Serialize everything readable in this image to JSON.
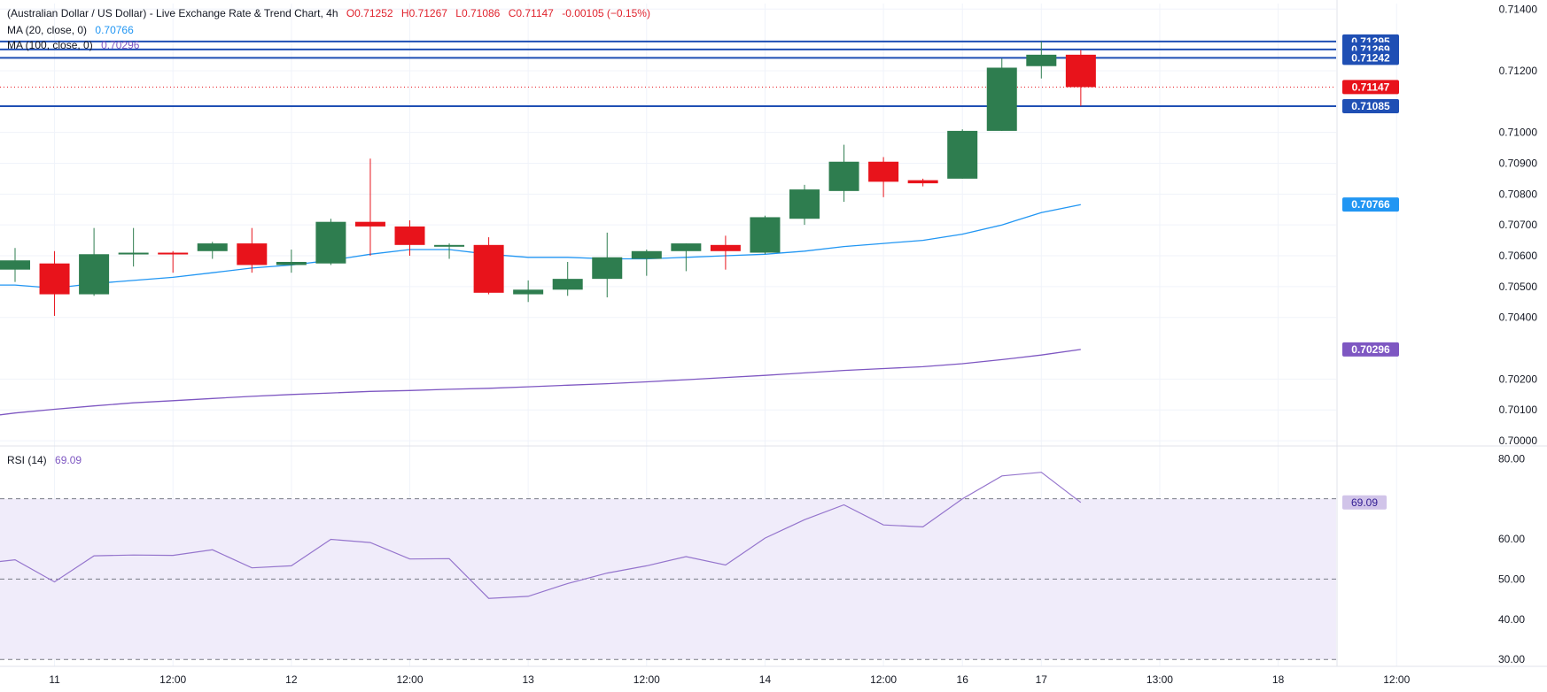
{
  "header": {
    "title": "(Australian Dollar / US Dollar) - Live Exchange Rate & Trend Chart, 4h",
    "open": "O0.71252",
    "high": "H0.71267",
    "low": "L0.71086",
    "close": "C0.71147",
    "change": "-0.00105 (−0.15%)",
    "ma20_label": "MA (20, close, 0)",
    "ma20_value": "0.70766",
    "ma100_label": "MA (100, close, 0)",
    "ma100_value": "0.70296",
    "rsi_label": "RSI (14)",
    "rsi_value": "69.09"
  },
  "colors": {
    "bull": "#2e7d4f",
    "bear": "#e8131b",
    "ma20": "#2196f3",
    "ma100": "#7e57c2",
    "rsi": "#9575cd",
    "hline": "#1f4fb4",
    "rsi_band": "#f0ecfa",
    "text": "#131722",
    "grid": "#f0f3fa"
  },
  "chart_data": [
    {
      "type": "candlestick",
      "title": "(Australian Dollar / US Dollar) - Live Exchange Rate & Trend Chart, 4h",
      "xlabel": "",
      "ylabel": "",
      "ylim": [
        0.6996,
        0.71418
      ],
      "y_ticks": [
        "0.71400",
        "0.71200",
        "0.71000",
        "0.70900",
        "0.70800",
        "0.70700",
        "0.70600",
        "0.70500",
        "0.70400",
        "0.70200",
        "0.70100",
        "0.70000"
      ],
      "x_ticks": [
        {
          "label": "11",
          "index": 1
        },
        {
          "label": "12:00",
          "index": 4
        },
        {
          "label": "12",
          "index": 7
        },
        {
          "label": "12:00",
          "index": 10
        },
        {
          "label": "13",
          "index": 13
        },
        {
          "label": "12:00",
          "index": 16
        },
        {
          "label": "14",
          "index": 19
        },
        {
          "label": "12:00",
          "index": 22
        },
        {
          "label": "16",
          "index": 24
        },
        {
          "label": "17",
          "index": 26
        },
        {
          "label": "13:00",
          "index": 29
        },
        {
          "label": "18",
          "index": 32
        },
        {
          "label": "12:00",
          "index": 35
        }
      ],
      "candles": [
        [
          0.70555,
          0.70625,
          0.70515,
          0.70585
        ],
        [
          0.70575,
          0.70615,
          0.70405,
          0.70475
        ],
        [
          0.70475,
          0.7069,
          0.7047,
          0.70605
        ],
        [
          0.70605,
          0.7069,
          0.70565,
          0.7061
        ],
        [
          0.7061,
          0.70615,
          0.70545,
          0.70605
        ],
        [
          0.70615,
          0.70645,
          0.7059,
          0.7064
        ],
        [
          0.7064,
          0.7069,
          0.70545,
          0.7057
        ],
        [
          0.7057,
          0.7062,
          0.70545,
          0.7058
        ],
        [
          0.70575,
          0.7072,
          0.7057,
          0.7071
        ],
        [
          0.7071,
          0.70915,
          0.706,
          0.70695
        ],
        [
          0.70695,
          0.70715,
          0.706,
          0.70635
        ],
        [
          0.7063,
          0.7064,
          0.7059,
          0.70635
        ],
        [
          0.70635,
          0.7066,
          0.70475,
          0.7048
        ],
        [
          0.70475,
          0.7052,
          0.7045,
          0.7049
        ],
        [
          0.7049,
          0.7058,
          0.7047,
          0.70525
        ],
        [
          0.70525,
          0.70675,
          0.70465,
          0.70595
        ],
        [
          0.7059,
          0.7062,
          0.70535,
          0.70615
        ],
        [
          0.70615,
          0.7064,
          0.7055,
          0.7064
        ],
        [
          0.70635,
          0.70665,
          0.70555,
          0.70615
        ],
        [
          0.7061,
          0.7073,
          0.70605,
          0.70725
        ],
        [
          0.7072,
          0.7083,
          0.707,
          0.70815
        ],
        [
          0.7081,
          0.7096,
          0.70775,
          0.70905
        ],
        [
          0.70905,
          0.7092,
          0.7079,
          0.7084
        ],
        [
          0.70845,
          0.7085,
          0.70825,
          0.70835
        ],
        [
          0.7085,
          0.7101,
          0.7085,
          0.71005
        ],
        [
          0.71005,
          0.7124,
          0.71005,
          0.7121
        ],
        [
          0.71215,
          0.71295,
          0.71175,
          0.71252
        ],
        [
          0.71252,
          0.71267,
          0.71086,
          0.71147
        ]
      ],
      "series": [
        {
          "name": "MA (20, close, 0)",
          "values": [
            0.70505,
            0.70495,
            0.7051,
            0.7052,
            0.7053,
            0.70545,
            0.7056,
            0.7057,
            0.70585,
            0.70605,
            0.7062,
            0.7062,
            0.70605,
            0.70595,
            0.70595,
            0.7059,
            0.7059,
            0.70595,
            0.706,
            0.70605,
            0.70615,
            0.7063,
            0.7064,
            0.7065,
            0.7067,
            0.707,
            0.7074,
            0.70766
          ]
        },
        {
          "name": "MA (100, close, 0)",
          "values": [
            0.7009,
            0.70102,
            0.70113,
            0.70123,
            0.7013,
            0.70137,
            0.70144,
            0.7015,
            0.70155,
            0.7016,
            0.70163,
            0.70167,
            0.7017,
            0.70175,
            0.7018,
            0.70185,
            0.70191,
            0.70198,
            0.70205,
            0.70212,
            0.7022,
            0.70228,
            0.70234,
            0.7024,
            0.7025,
            0.70263,
            0.70278,
            0.70296
          ]
        }
      ],
      "horizontal_lines": [
        {
          "value": 0.71295,
          "label": "0.71295",
          "style": "solid"
        },
        {
          "value": 0.71269,
          "label": "0.71269",
          "style": "solid"
        },
        {
          "value": 0.71242,
          "label": "0.71242",
          "style": "solid"
        },
        {
          "value": 0.71085,
          "label": "0.71085",
          "style": "solid"
        },
        {
          "value": 0.71147,
          "label": "0.71147",
          "style": "dotted"
        }
      ],
      "price_labels": [
        {
          "value": 0.71147,
          "label": "0.71147",
          "color": "#e8131b"
        },
        {
          "value": 0.70766,
          "label": "0.70766",
          "color": "#2196f3"
        },
        {
          "value": 0.70296,
          "label": "0.70296",
          "color": "#7e57c2"
        }
      ]
    },
    {
      "type": "line",
      "title": "RSI (14)",
      "xlabel": "",
      "ylabel": "",
      "ylim": [
        28.5,
        80.5
      ],
      "y_ticks": [
        "80.00",
        "60.00",
        "50.00",
        "40.00",
        "30.00"
      ],
      "levels": [
        {
          "value": 70,
          "style": "dashed"
        },
        {
          "value": 50,
          "style": "dashed"
        },
        {
          "value": 30,
          "style": "dashed"
        }
      ],
      "overbought_band": [
        30,
        70
      ],
      "series": [
        {
          "name": "RSI (14)",
          "values": [
            54.8,
            49.3,
            55.8,
            56.0,
            55.9,
            57.3,
            52.8,
            53.3,
            59.9,
            59.1,
            55.0,
            55.1,
            45.2,
            45.7,
            48.9,
            51.5,
            53.3,
            55.6,
            53.5,
            60.2,
            64.8,
            68.5,
            63.5,
            63.0,
            70.0,
            75.7,
            76.6,
            69.09
          ]
        }
      ],
      "current_label": "69.09"
    }
  ]
}
